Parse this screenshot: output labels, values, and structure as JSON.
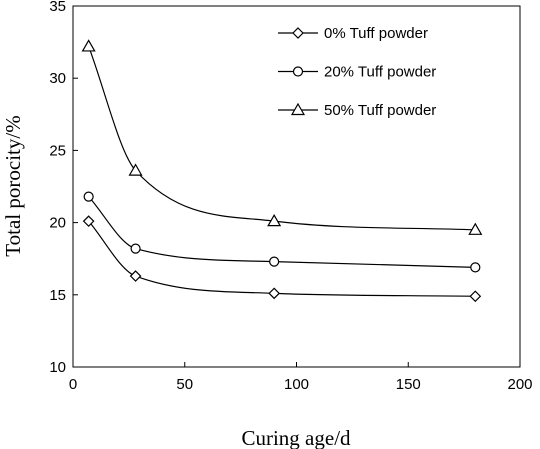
{
  "chart_data": {
    "type": "line",
    "title": "",
    "xlabel": "Curing age/d",
    "ylabel": "Total porocity/%",
    "xlim": [
      0,
      200
    ],
    "ylim": [
      10,
      35
    ],
    "xticks": [
      0,
      50,
      100,
      150,
      200
    ],
    "yticks": [
      10,
      15,
      20,
      25,
      30,
      35
    ],
    "grid": false,
    "smooth": true,
    "legend_position": "top-right",
    "line_color": "#000000",
    "x": [
      7,
      28,
      90,
      180
    ],
    "series": [
      {
        "name": "0% Tuff powder",
        "marker": "diamond",
        "values": [
          20.1,
          16.3,
          15.1,
          14.9
        ]
      },
      {
        "name": "20% Tuff powder",
        "marker": "circle",
        "values": [
          21.8,
          18.2,
          17.3,
          16.9
        ]
      },
      {
        "name": "50% Tuff powder",
        "marker": "triangle",
        "values": [
          32.2,
          23.6,
          20.1,
          19.5
        ]
      }
    ]
  }
}
